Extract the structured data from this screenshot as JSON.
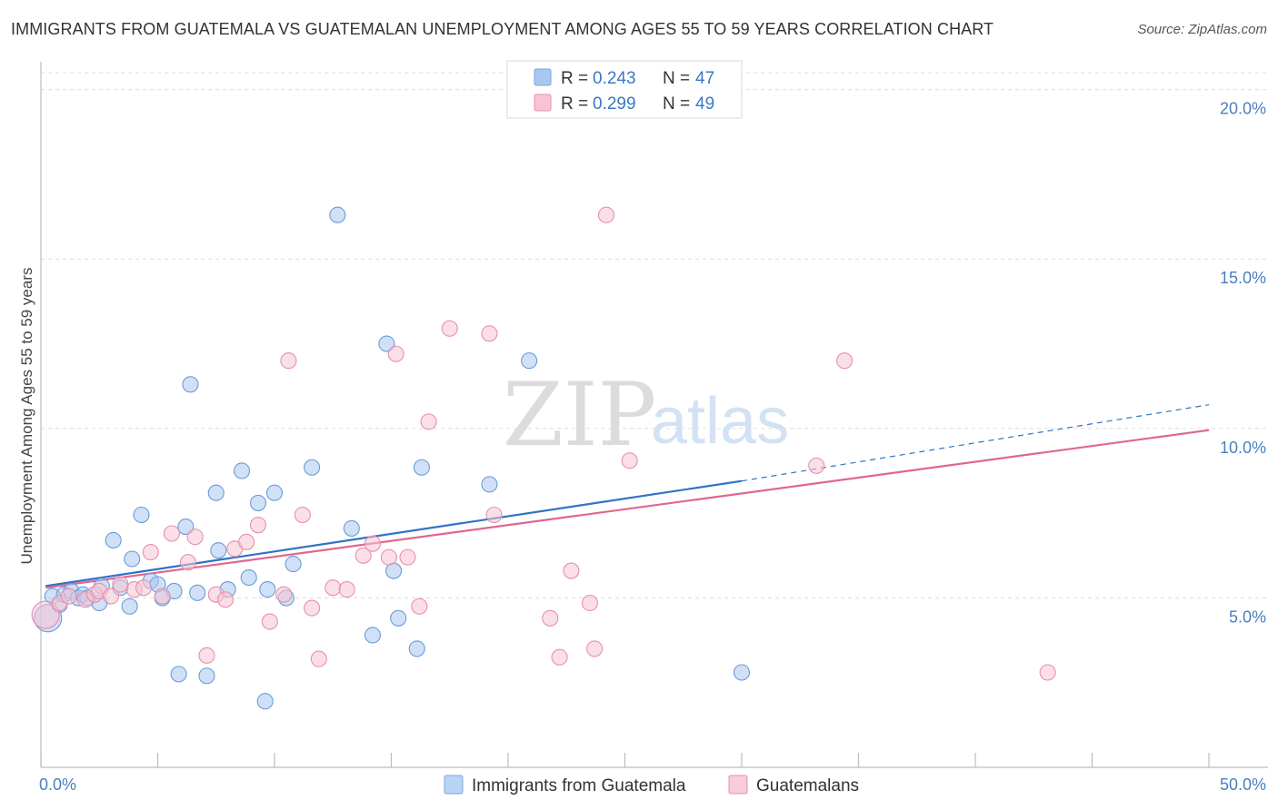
{
  "title": "IMMIGRANTS FROM GUATEMALA VS GUATEMALAN UNEMPLOYMENT AMONG AGES 55 TO 59 YEARS CORRELATION CHART",
  "source": "Source: ZipAtlas.com",
  "watermark": {
    "part1": "ZIP",
    "part2": "atlas"
  },
  "legend_top": [
    {
      "r_label": "R =",
      "r_value": "0.243",
      "n_label": "N =",
      "n_value": "47",
      "color": "#a9c8f0",
      "stroke": "#7aa6dc"
    },
    {
      "r_label": "R =",
      "r_value": "0.299",
      "n_label": "N =",
      "n_value": "49",
      "color": "#f8c4d4",
      "stroke": "#e890ad"
    }
  ],
  "chart_data": {
    "type": "scatter",
    "title": "IMMIGRANTS FROM GUATEMALA VS GUATEMALAN UNEMPLOYMENT AMONG AGES 55 TO 59 YEARS CORRELATION CHART",
    "ylabel": "Unemployment Among Ages 55 to 59 years",
    "xlabel": "",
    "xlim": [
      0,
      50
    ],
    "ylim": [
      0,
      20.5
    ],
    "x_tick_labels": [
      "0.0%",
      "50.0%"
    ],
    "y_ticks": [
      5,
      10,
      15,
      20
    ],
    "y_tick_labels": [
      "5.0%",
      "10.0%",
      "15.0%",
      "20.0%"
    ],
    "grid": true,
    "legend_placement": "top-center",
    "series": [
      {
        "name": "Immigrants from Guatemala",
        "color": "#a9c8f0",
        "stroke": "#6a9bd8",
        "line_color": "#2f72c7",
        "trend": {
          "x0": 0.2,
          "y0": 5.35,
          "x1": 30,
          "y1": 8.45,
          "dash_x1": 50,
          "dash_y1": 10.7
        },
        "points": [
          [
            0.3,
            4.4
          ],
          [
            0.5,
            5.05
          ],
          [
            0.8,
            4.8
          ],
          [
            1.0,
            5.1
          ],
          [
            1.3,
            5.2
          ],
          [
            1.6,
            5.0
          ],
          [
            1.8,
            5.1
          ],
          [
            2.0,
            5.0
          ],
          [
            2.5,
            4.85
          ],
          [
            2.6,
            5.35
          ],
          [
            3.1,
            6.7
          ],
          [
            3.4,
            5.3
          ],
          [
            3.8,
            4.75
          ],
          [
            3.9,
            6.15
          ],
          [
            4.3,
            7.45
          ],
          [
            4.7,
            5.5
          ],
          [
            5.0,
            5.4
          ],
          [
            5.2,
            5.0
          ],
          [
            5.7,
            5.2
          ],
          [
            5.9,
            2.75
          ],
          [
            6.2,
            7.1
          ],
          [
            6.4,
            11.3
          ],
          [
            6.7,
            5.15
          ],
          [
            7.1,
            2.7
          ],
          [
            7.5,
            8.1
          ],
          [
            7.6,
            6.4
          ],
          [
            8.0,
            5.25
          ],
          [
            8.6,
            8.75
          ],
          [
            8.9,
            5.6
          ],
          [
            9.3,
            7.8
          ],
          [
            9.6,
            1.95
          ],
          [
            9.7,
            5.25
          ],
          [
            10.0,
            8.1
          ],
          [
            10.5,
            5.0
          ],
          [
            10.8,
            6.0
          ],
          [
            11.6,
            8.85
          ],
          [
            12.7,
            16.3
          ],
          [
            13.3,
            7.05
          ],
          [
            14.2,
            3.9
          ],
          [
            14.8,
            12.5
          ],
          [
            15.1,
            5.8
          ],
          [
            15.3,
            4.4
          ],
          [
            16.1,
            3.5
          ],
          [
            16.3,
            8.85
          ],
          [
            19.2,
            8.35
          ],
          [
            20.9,
            12.0
          ],
          [
            30.0,
            2.8
          ]
        ]
      },
      {
        "name": "Guatemalans",
        "color": "#f8c4d4",
        "stroke": "#e78fad",
        "line_color": "#e06690",
        "trend": {
          "x0": 0.2,
          "y0": 5.3,
          "x1": 50,
          "y1": 9.95
        },
        "points": [
          [
            0.2,
            4.5
          ],
          [
            0.8,
            4.85
          ],
          [
            1.2,
            5.05
          ],
          [
            1.9,
            4.95
          ],
          [
            2.3,
            5.1
          ],
          [
            2.5,
            5.2
          ],
          [
            3.0,
            5.05
          ],
          [
            3.4,
            5.4
          ],
          [
            4.0,
            5.25
          ],
          [
            4.4,
            5.3
          ],
          [
            4.7,
            6.35
          ],
          [
            5.2,
            5.05
          ],
          [
            5.6,
            6.9
          ],
          [
            6.3,
            6.05
          ],
          [
            6.6,
            6.8
          ],
          [
            7.1,
            3.3
          ],
          [
            7.5,
            5.1
          ],
          [
            7.9,
            4.95
          ],
          [
            8.3,
            6.45
          ],
          [
            8.8,
            6.65
          ],
          [
            9.3,
            7.15
          ],
          [
            9.8,
            4.3
          ],
          [
            10.4,
            5.1
          ],
          [
            10.6,
            12.0
          ],
          [
            11.2,
            7.45
          ],
          [
            11.6,
            4.7
          ],
          [
            11.9,
            3.2
          ],
          [
            12.5,
            5.3
          ],
          [
            13.1,
            5.25
          ],
          [
            13.8,
            6.25
          ],
          [
            14.2,
            6.6
          ],
          [
            14.9,
            6.2
          ],
          [
            15.2,
            12.2
          ],
          [
            15.7,
            6.2
          ],
          [
            16.2,
            4.75
          ],
          [
            16.6,
            10.2
          ],
          [
            17.5,
            12.95
          ],
          [
            19.2,
            12.8
          ],
          [
            19.4,
            7.45
          ],
          [
            21.8,
            4.4
          ],
          [
            22.2,
            3.25
          ],
          [
            22.7,
            5.8
          ],
          [
            23.5,
            4.85
          ],
          [
            23.7,
            3.5
          ],
          [
            24.2,
            16.3
          ],
          [
            25.2,
            9.05
          ],
          [
            33.2,
            8.9
          ],
          [
            34.4,
            12.0
          ],
          [
            43.1,
            2.8
          ]
        ]
      }
    ]
  }
}
